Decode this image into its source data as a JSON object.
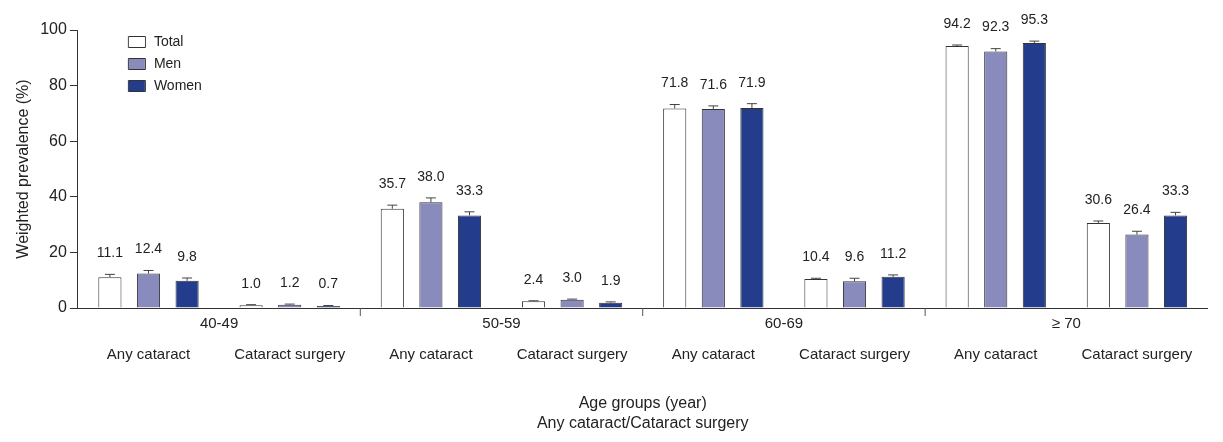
{
  "chart_data": {
    "type": "bar",
    "ylabel": "Weighted prevalence (%)",
    "xlabel": "Age groups (year)\nAny cataract/Cataract surgery",
    "categories": [
      "Any cataract",
      "Cataract surgery",
      "Any cataract",
      "Cataract surgery",
      "Any cataract",
      "Cataract surgery",
      "Any cataract",
      "Cataract surgery"
    ],
    "annotations": [
      "40-49",
      "50-59",
      "60-69",
      "≥ 70"
    ],
    "series": [
      {
        "name": "Total",
        "color": "#ffffff",
        "values": [
          11.1,
          1.0,
          35.7,
          2.4,
          71.8,
          10.4,
          94.2,
          30.6
        ],
        "value_labels": [
          "11.1",
          "1.0",
          "35.7",
          "2.4",
          "71.8",
          "10.4",
          "94.2",
          "30.6"
        ],
        "errors": [
          [
            11.1,
            12.1
          ],
          [
            1.0,
            1.2
          ],
          [
            35.7,
            37.0
          ],
          [
            2.4,
            2.6
          ],
          [
            71.8,
            73.2
          ],
          [
            10.4,
            10.7
          ],
          [
            94.2,
            94.6
          ],
          [
            30.6,
            31.3
          ]
        ]
      },
      {
        "name": "Men",
        "color": "#8a8bbd",
        "values": [
          12.4,
          1.2,
          38.0,
          3.0,
          71.6,
          9.6,
          92.3,
          26.4
        ],
        "value_labels": [
          "12.4",
          "1.2",
          "38.0",
          "3.0",
          "71.6",
          "9.6",
          "92.3",
          "26.4"
        ],
        "errors": [
          [
            12.4,
            13.5
          ],
          [
            1.2,
            1.4
          ],
          [
            38.0,
            39.6
          ],
          [
            3.0,
            3.2
          ],
          [
            71.6,
            72.7
          ],
          [
            9.6,
            10.7
          ],
          [
            92.3,
            93.3
          ],
          [
            26.4,
            27.6
          ]
        ]
      },
      {
        "name": "Women",
        "color": "#233d8c",
        "values": [
          9.8,
          0.7,
          33.3,
          1.9,
          71.9,
          11.2,
          95.3,
          33.3
        ],
        "value_labels": [
          "9.8",
          "0.7",
          "33.3",
          "1.9",
          "71.9",
          "11.2",
          "95.3",
          "33.3"
        ],
        "errors": [
          [
            9.8,
            10.8
          ],
          [
            0.7,
            0.9
          ],
          [
            33.3,
            34.6
          ],
          [
            1.9,
            2.2
          ],
          [
            71.9,
            73.5
          ],
          [
            11.2,
            11.9
          ],
          [
            95.3,
            96.0
          ],
          [
            33.3,
            34.4
          ]
        ]
      }
    ],
    "ylim": [
      0,
      100
    ],
    "yticks": [
      0,
      20,
      40,
      60,
      80,
      100
    ],
    "legend": "top left"
  }
}
